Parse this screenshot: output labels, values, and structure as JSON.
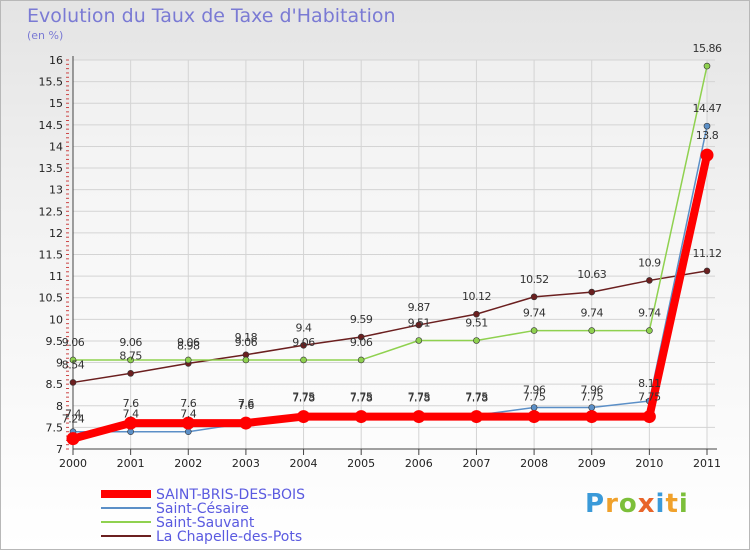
{
  "title": "Evolution du Taux de Taxe d'Habitation",
  "unit": "(en %)",
  "logo_text": "Proxiti",
  "chart_data": {
    "type": "line",
    "title": "Evolution du Taux de Taxe d'Habitation",
    "ylabel": "(en %)",
    "xlabel": "",
    "ylim": [
      7,
      16
    ],
    "y_ticks": [
      7,
      7.5,
      8,
      8.5,
      9,
      9.5,
      10,
      10.5,
      11,
      11.5,
      12,
      12.5,
      13,
      13.5,
      14,
      14.5,
      15,
      15.5,
      16
    ],
    "x": [
      "2000",
      "2001",
      "2002",
      "2003",
      "2004",
      "2005",
      "2006",
      "2007",
      "2008",
      "2009",
      "2010",
      "2011"
    ],
    "grid": true,
    "legend_position": "bottom-left",
    "series": [
      {
        "name": "SAINT-BRIS-DES-BOIS",
        "color": "#ff0000",
        "values": [
          7.24,
          7.6,
          7.6,
          7.6,
          7.75,
          7.75,
          7.75,
          7.75,
          7.75,
          7.75,
          7.75,
          13.8
        ]
      },
      {
        "name": "Saint-Césaire",
        "color": "#5b8fc7",
        "values": [
          7.4,
          7.4,
          7.4,
          7.6,
          7.78,
          7.78,
          7.78,
          7.78,
          7.96,
          7.96,
          8.11,
          14.47
        ]
      },
      {
        "name": "Saint-Sauvant",
        "color": "#8fd14f",
        "values": [
          9.06,
          9.06,
          9.06,
          9.06,
          9.06,
          9.06,
          9.51,
          9.51,
          9.74,
          9.74,
          9.74,
          15.86
        ]
      },
      {
        "name": "La Chapelle-des-Pots",
        "color": "#6b1f1f",
        "values": [
          8.54,
          8.75,
          8.98,
          9.18,
          9.4,
          9.59,
          9.87,
          10.12,
          10.52,
          10.63,
          10.9,
          11.12
        ]
      }
    ]
  }
}
